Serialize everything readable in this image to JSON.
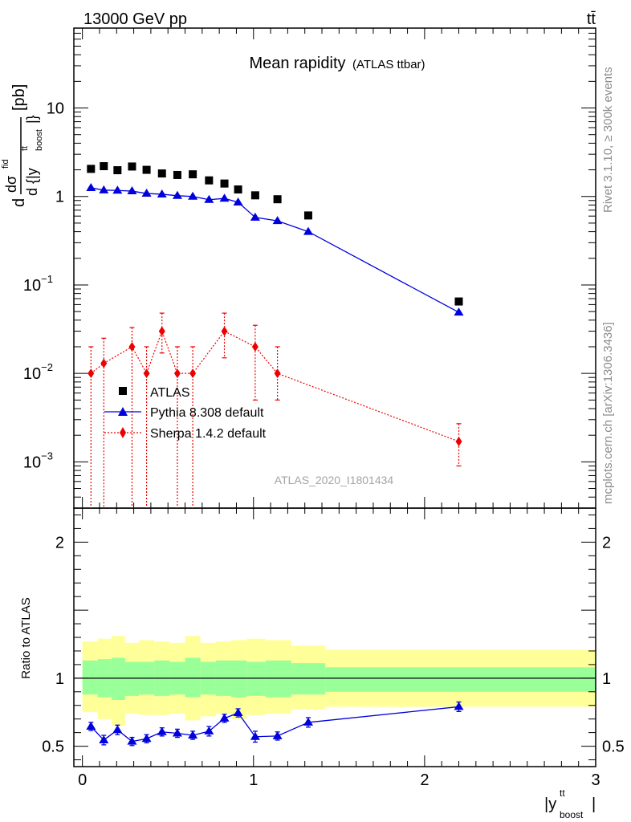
{
  "header": {
    "left": "13000 GeV pp",
    "right": "tt̄"
  },
  "title": {
    "main": "Mean rapidity",
    "sub": "(ATLAS ttbar)"
  },
  "side_labels": {
    "rivet": "Rivet 3.1.10, ≥ 300k events",
    "mcplots": "mcplots.cern.ch [arXiv:1306.3436]"
  },
  "watermark": "ATLAS_2020_I1801434",
  "axes": {
    "ylabel_top": {
      "d": "d",
      "dsigma": "dσ",
      "num_sup": "fid",
      "den": "d {|y",
      "den_sup": "tt",
      "den_sub": "boost",
      "den_close": "|}",
      "unit": "[pb]"
    },
    "ylabel_bottom": "Ratio to ATLAS",
    "xlabel": {
      "base": "|y",
      "sup": "tt",
      "sub": "boost",
      "close": "|"
    },
    "top_ticks": [
      {
        "base": "10",
        "exp": "−3",
        "value": 0.001
      },
      {
        "base": "10",
        "exp": "−2",
        "value": 0.01
      },
      {
        "base": "10",
        "exp": "−1",
        "value": 0.1
      },
      {
        "base": "1",
        "exp": "",
        "value": 1
      },
      {
        "base": "10",
        "exp": "",
        "value": 10
      }
    ],
    "bottom_ticks": [
      {
        "label": "0.5",
        "value": 0.5
      },
      {
        "label": "1",
        "value": 1
      },
      {
        "label": "2",
        "value": 2
      }
    ],
    "x_ticks": [
      {
        "label": "0",
        "value": 0
      },
      {
        "label": "1",
        "value": 1
      },
      {
        "label": "2",
        "value": 2
      },
      {
        "label": "3",
        "value": 3
      }
    ]
  },
  "legend": [
    {
      "label": "ATLAS",
      "color": "#000000",
      "marker": "square"
    },
    {
      "label": "Pythia 8.308 default",
      "color": "#0000dd",
      "marker": "triangle"
    },
    {
      "label": "Sherpa 1.4.2 default",
      "color": "#ee0000",
      "marker": "diamond"
    }
  ],
  "chart_data": {
    "type": "scatter",
    "xlim": [
      -0.05,
      3.0
    ],
    "ylim_top": [
      0.0003,
      80
    ],
    "ylog_top": true,
    "ylim_bottom": [
      0.35,
      2.25
    ],
    "x": [
      0.05,
      0.125,
      0.205,
      0.29,
      0.375,
      0.465,
      0.555,
      0.645,
      0.74,
      0.83,
      0.91,
      1.01,
      1.14,
      1.32,
      2.2
    ],
    "bin_edges": [
      0.0,
      0.09,
      0.17,
      0.25,
      0.33,
      0.42,
      0.51,
      0.6,
      0.69,
      0.78,
      0.87,
      0.96,
      1.07,
      1.22,
      1.42,
      3.0
    ],
    "series": [
      {
        "name": "ATLAS",
        "values": [
          2.05,
          2.2,
          1.98,
          2.18,
          2.0,
          1.82,
          1.75,
          1.78,
          1.52,
          1.4,
          1.2,
          1.03,
          0.93,
          0.61,
          0.065
        ]
      },
      {
        "name": "Pythia 8.308 default",
        "values": [
          1.25,
          1.18,
          1.17,
          1.15,
          1.08,
          1.06,
          1.02,
          1.0,
          0.92,
          0.95,
          0.86,
          0.58,
          0.53,
          0.4,
          0.049
        ],
        "ratio": [
          0.645,
          0.545,
          0.62,
          0.535,
          0.555,
          0.605,
          0.595,
          0.58,
          0.61,
          0.705,
          0.745,
          0.57,
          0.575,
          0.675,
          0.79
        ],
        "ratio_err": [
          0.03,
          0.035,
          0.035,
          0.03,
          0.03,
          0.03,
          0.03,
          0.03,
          0.035,
          0.03,
          0.03,
          0.04,
          0.03,
          0.035,
          0.035
        ]
      },
      {
        "name": "Sherpa 1.4.2 default",
        "values": [
          0.01,
          0.013,
          0.02,
          0.01,
          0.03,
          0.01,
          0.01,
          0.03,
          0.02,
          0.01,
          0.0017
        ],
        "x": [
          0.05,
          0.125,
          0.29,
          0.375,
          0.465,
          0.555,
          0.645,
          0.83,
          1.01,
          1.14,
          2.2
        ],
        "err_up": [
          0.02,
          0.025,
          0.033,
          0.02,
          0.048,
          0.02,
          0.02,
          0.048,
          0.035,
          0.02,
          0.0027
        ],
        "err_down": [
          0.0003,
          0.0003,
          0.0003,
          0.0003,
          0.017,
          0.0003,
          0.0003,
          0.015,
          0.005,
          0.005,
          0.0009
        ]
      }
    ],
    "bands": {
      "inner": {
        "color": "#99ff99",
        "lo": [
          0.88,
          0.86,
          0.84,
          0.87,
          0.88,
          0.87,
          0.88,
          0.86,
          0.88,
          0.87,
          0.86,
          0.87,
          0.86,
          0.88,
          0.9
        ],
        "hi": [
          1.13,
          1.14,
          1.15,
          1.12,
          1.12,
          1.13,
          1.12,
          1.15,
          1.12,
          1.13,
          1.13,
          1.12,
          1.13,
          1.11,
          1.08
        ]
      },
      "outer": {
        "color": "#ffff99",
        "lo": [
          0.75,
          0.7,
          0.65,
          0.74,
          0.73,
          0.73,
          0.74,
          0.69,
          0.72,
          0.74,
          0.7,
          0.73,
          0.74,
          0.77,
          0.79
        ],
        "hi": [
          1.27,
          1.29,
          1.31,
          1.26,
          1.28,
          1.27,
          1.26,
          1.31,
          1.26,
          1.27,
          1.28,
          1.29,
          1.28,
          1.24,
          1.21
        ]
      }
    }
  }
}
